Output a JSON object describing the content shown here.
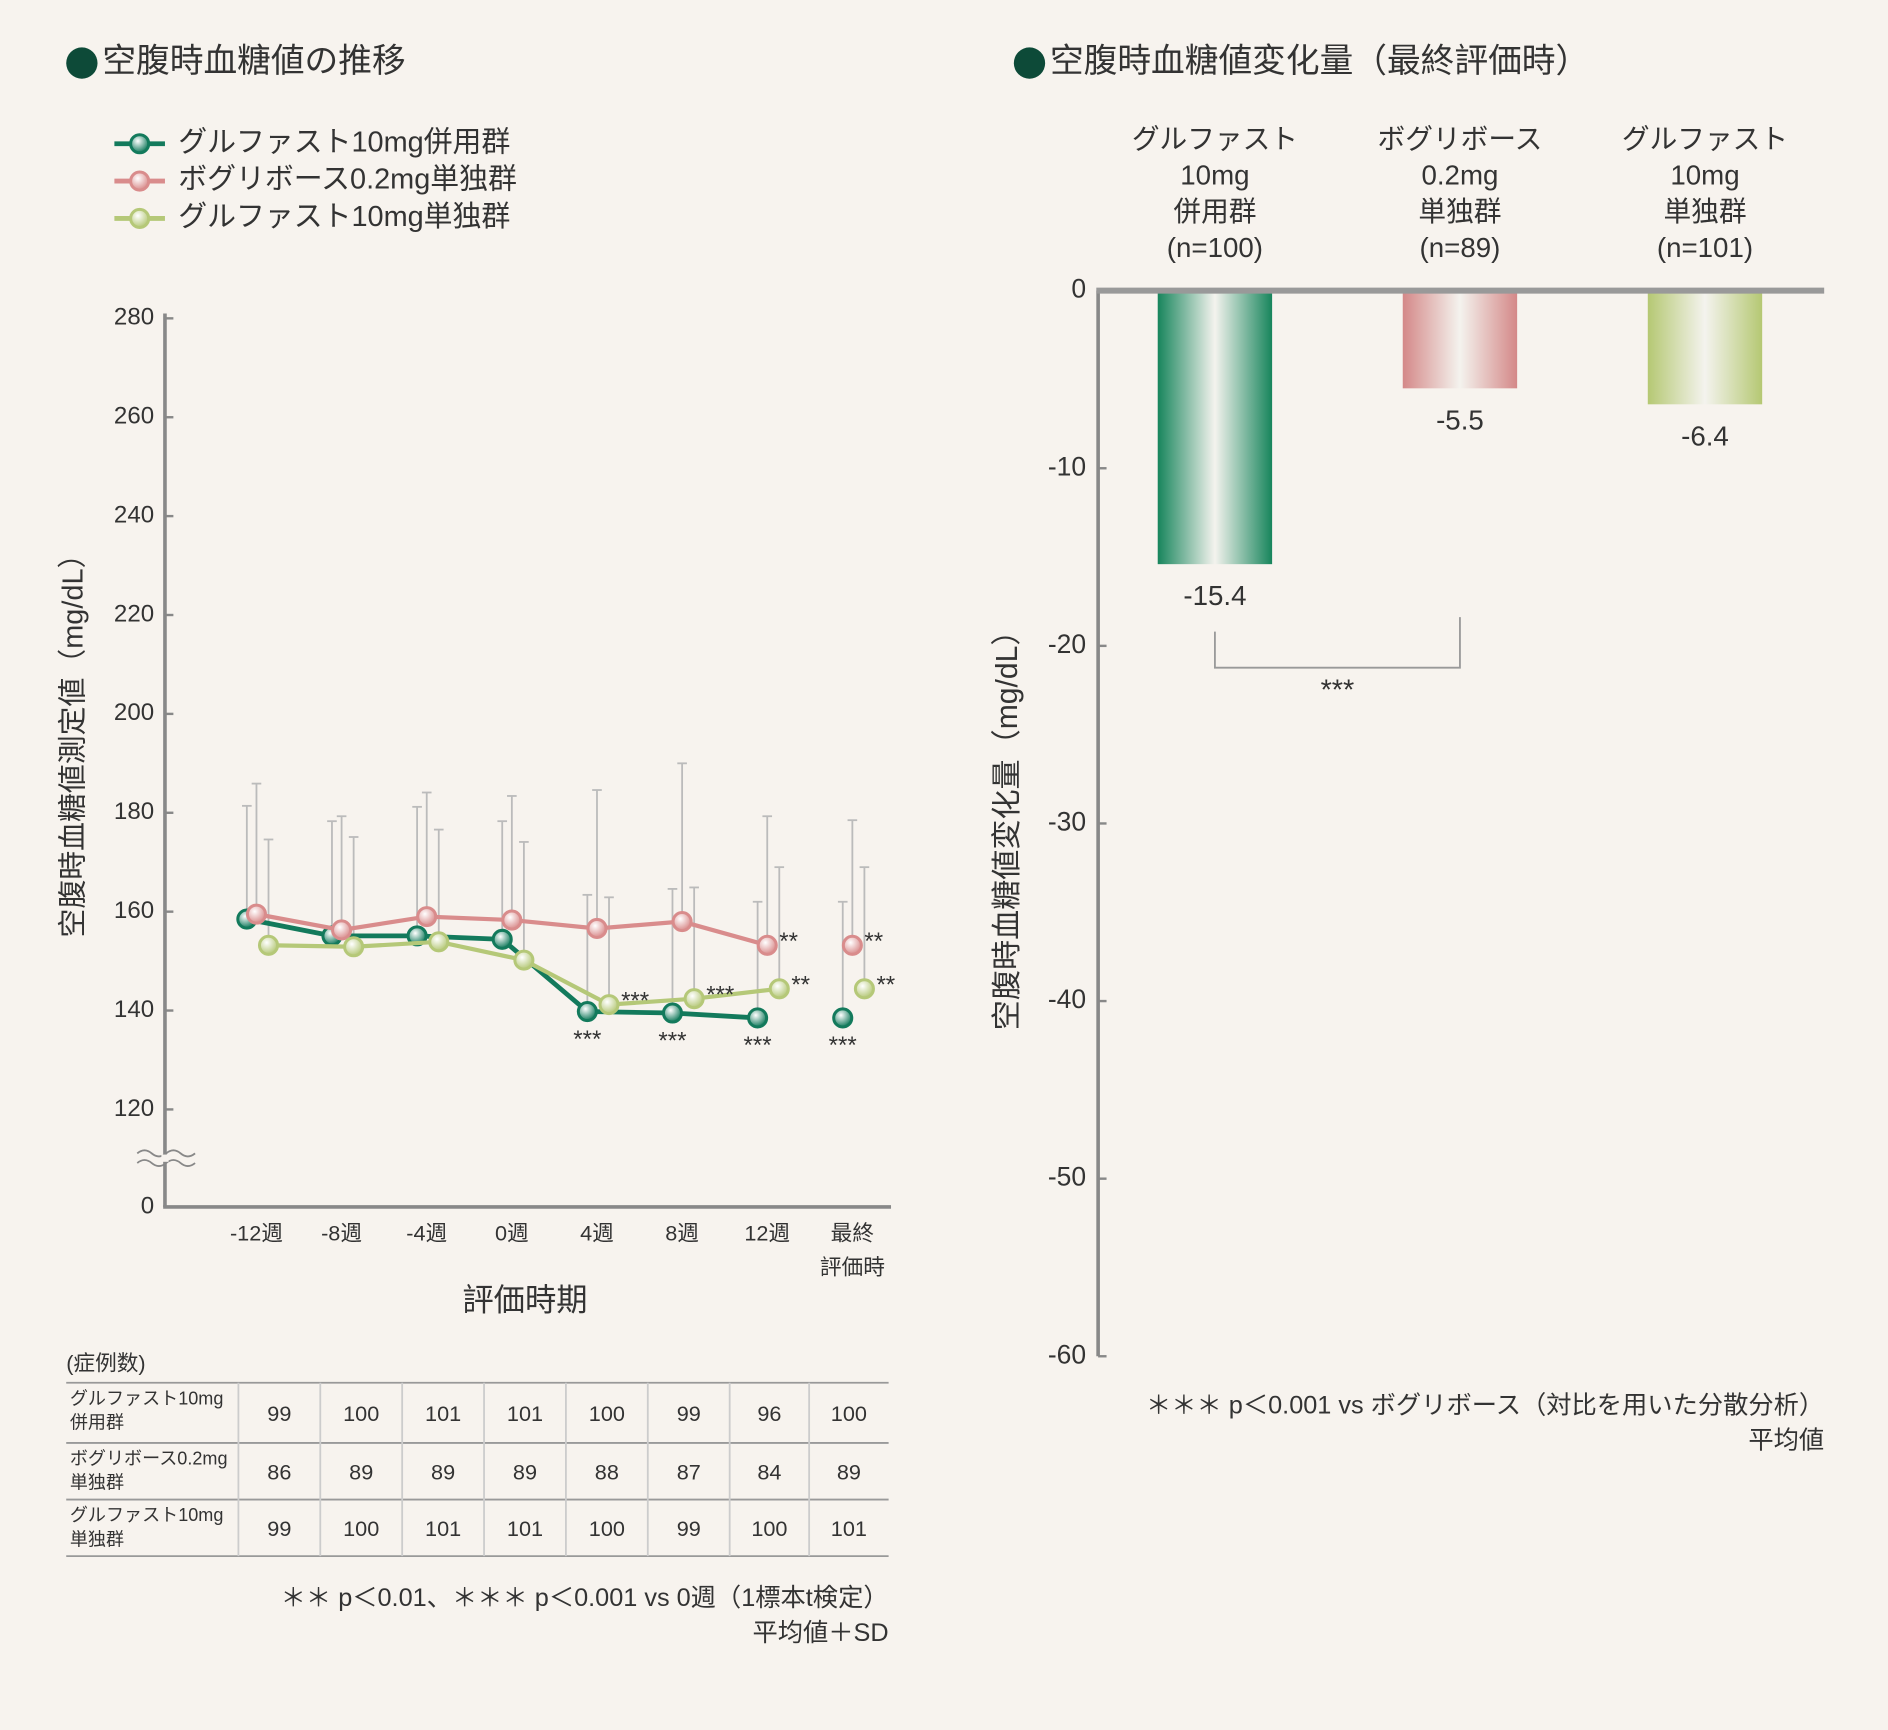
{
  "chart_data": [
    {
      "type": "line",
      "title": "空腹時血糖値の推移",
      "x_label": "評価時期",
      "y_label": "空腹時血糖値測定値（mg/dL）",
      "categories": [
        "-12週",
        "-8週",
        "-4週",
        "0週",
        "4週",
        "8週",
        "12週",
        "最終\n評価時"
      ],
      "ylim": [
        0,
        280
      ],
      "yticks": [
        0,
        120,
        140,
        160,
        180,
        200,
        220,
        240,
        260,
        280
      ],
      "axis_break": [
        0,
        120
      ],
      "line_breaks_before": [
        7
      ],
      "series": [
        {
          "name": "グルファスト10mg併用群",
          "color": "#137a5c",
          "values": [
            158.5,
            155.1,
            155.1,
            154.4,
            139.8,
            139.5,
            138.5,
            138.5
          ],
          "errors": [
            22.9,
            23.2,
            26.1,
            23.9,
            23.6,
            25.1,
            23.5,
            23.5
          ],
          "annotations": [
            null,
            null,
            null,
            null,
            "***",
            "***",
            "***",
            "***"
          ]
        },
        {
          "name": "ボグリボース0.2mg単独群",
          "color": "#d98c8c",
          "values": [
            159.5,
            156.3,
            159.0,
            158.3,
            156.6,
            158.0,
            153.2,
            153.2
          ],
          "errors": [
            26.4,
            23.0,
            25.1,
            25.1,
            28.0,
            32.0,
            26.1,
            25.3
          ],
          "annotations": [
            null,
            null,
            null,
            null,
            null,
            null,
            "**",
            "**"
          ]
        },
        {
          "name": "グルファスト10mg単独群",
          "color": "#b5c878",
          "values": [
            153.2,
            152.9,
            153.9,
            150.2,
            141.2,
            142.4,
            144.4,
            144.4
          ],
          "errors": [
            21.4,
            22.2,
            22.7,
            23.9,
            21.7,
            22.5,
            24.6,
            24.6
          ],
          "annotations": [
            null,
            null,
            null,
            null,
            "***",
            "***",
            "**",
            "**"
          ]
        }
      ],
      "footnotes": [
        "＊＊ p＜0.01、＊＊＊ p＜0.001 vs 0週（1標本t検定）",
        "平均値＋SD"
      ]
    },
    {
      "type": "bar",
      "title": "空腹時血糖値変化量（最終評価時）",
      "y_label": "空腹時血糖値変化量（mg/dL）",
      "categories": [
        "グルファスト\n10mg\n併用群\n(n=100)",
        "ボグリボース\n0.2mg\n単独群\n(n=89)",
        "グルファスト\n10mg\n単独群\n(n=101)"
      ],
      "values": [
        -15.4,
        -5.5,
        -6.4
      ],
      "colors": [
        "#17855c",
        "#d48888",
        "#b5c873"
      ],
      "ylim": [
        -60,
        0
      ],
      "yticks": [
        0,
        -10,
        -20,
        -30,
        -40,
        -50,
        -60
      ],
      "significance": {
        "pair": [
          0,
          1
        ],
        "label": "***"
      },
      "footnotes": [
        "＊＊＊ p＜0.001 vs ボグリボース（対比を用いた分散分析）",
        "平均値"
      ]
    }
  ],
  "table": {
    "caption": "(症例数)",
    "rows": [
      [
        "グルファスト10mg\n併用群",
        99,
        100,
        101,
        101,
        100,
        99,
        96,
        100
      ],
      [
        "ボグリボース0.2mg\n単独群",
        86,
        89,
        89,
        89,
        88,
        87,
        84,
        89
      ],
      [
        "グルファスト10mg\n単独群",
        99,
        100,
        101,
        101,
        100,
        99,
        100,
        101
      ]
    ]
  }
}
